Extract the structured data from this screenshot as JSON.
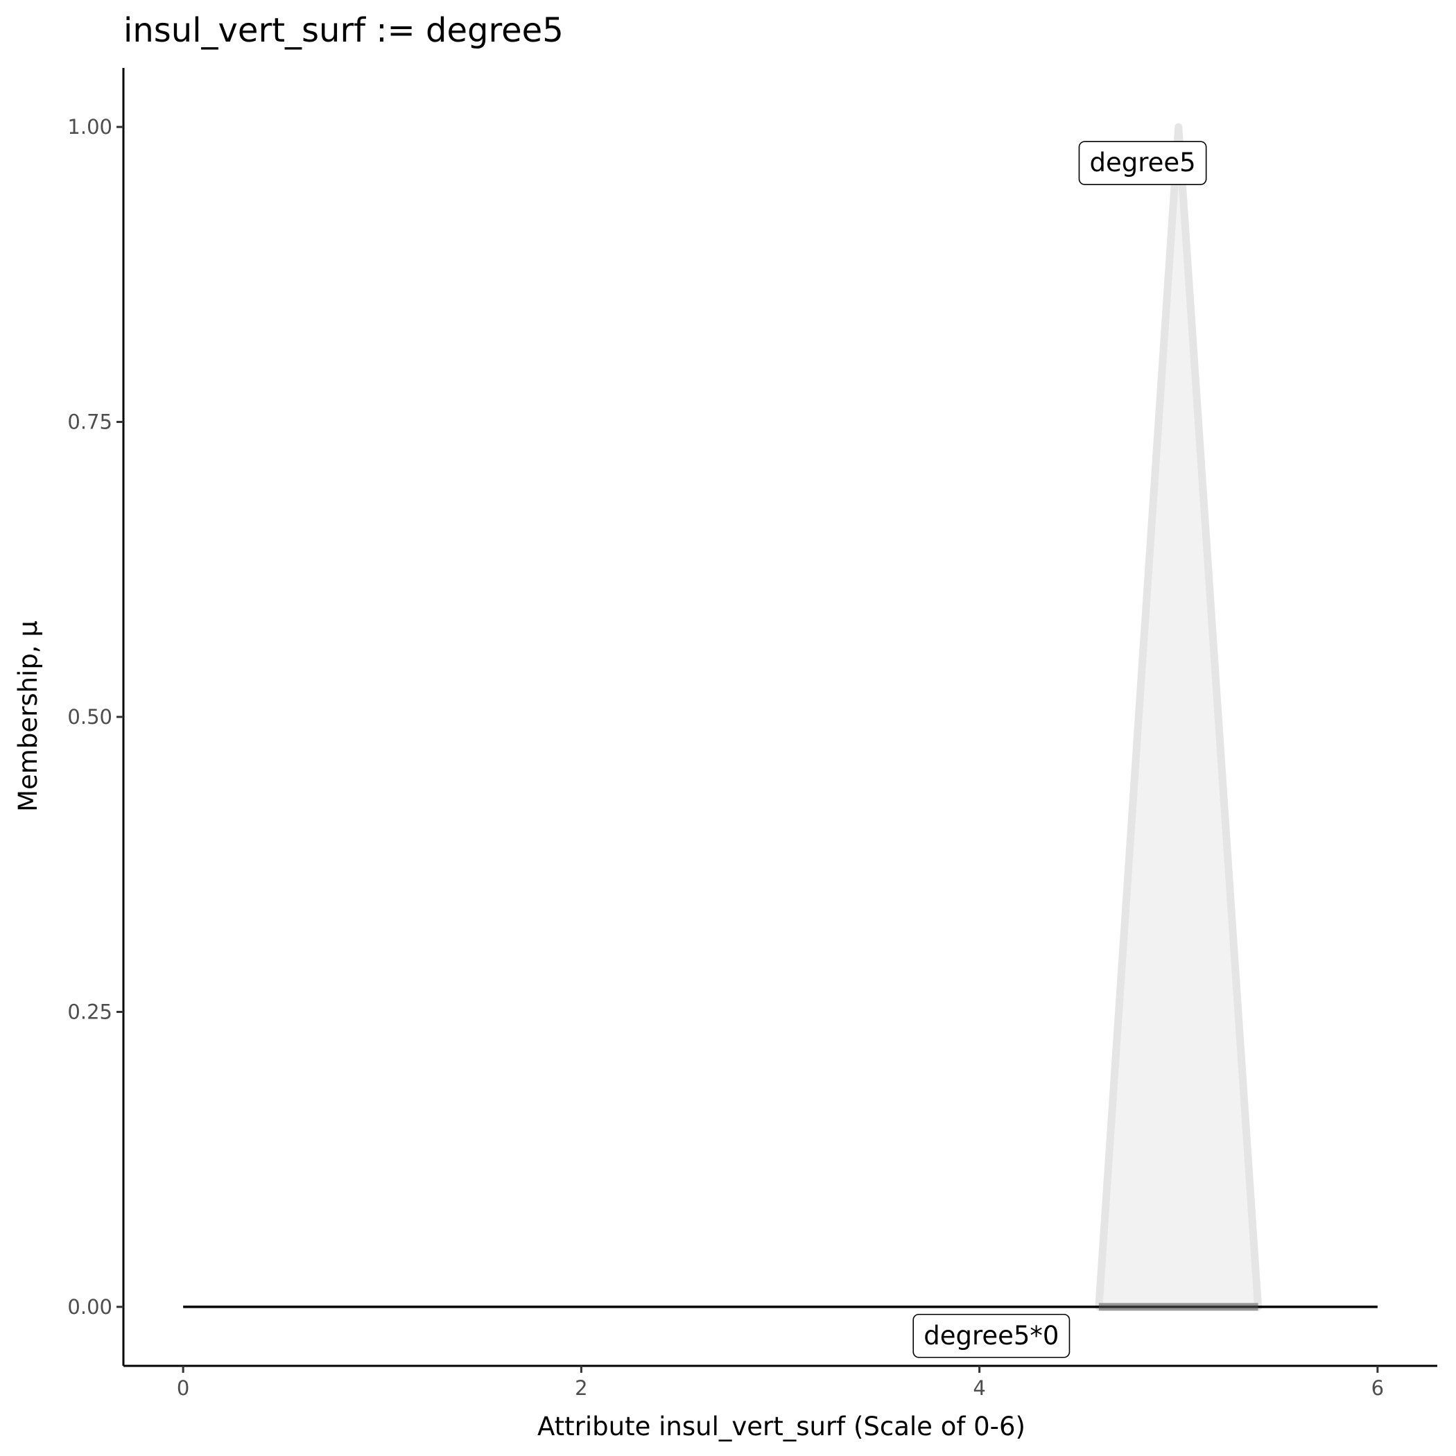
{
  "chart_data": {
    "type": "area",
    "title": "insul_vert_surf := degree5",
    "xlabel": "Attribute insul_vert_surf (Scale of 0-6)",
    "ylabel": "Membership, μ",
    "xlim": [
      -0.3,
      6.3
    ],
    "ylim": [
      -0.05,
      1.05
    ],
    "x_ticks": [
      0,
      2,
      4,
      6
    ],
    "x_tick_labels": [
      "0",
      "2",
      "4",
      "6"
    ],
    "y_ticks": [
      0,
      0.25,
      0.5,
      0.75,
      1.0
    ],
    "y_tick_labels": [
      "0.00",
      "0.25",
      "0.50",
      "0.75",
      "1.00"
    ],
    "grid": false,
    "series": [
      {
        "name": "degree5",
        "x": [
          4.6,
          5.0,
          5.4
        ],
        "y": [
          0,
          1,
          0
        ],
        "fill": "#f2f2f2",
        "stroke": "#e5e5e5"
      },
      {
        "name": "degree5*0",
        "x": [
          0,
          6
        ],
        "y": [
          0,
          0
        ],
        "stroke": "#000000"
      }
    ],
    "annotations": [
      {
        "text": "degree5",
        "x": 4.82,
        "y": 0.97
      },
      {
        "text": "degree5*0",
        "x": 4.06,
        "y": -0.024
      }
    ]
  }
}
